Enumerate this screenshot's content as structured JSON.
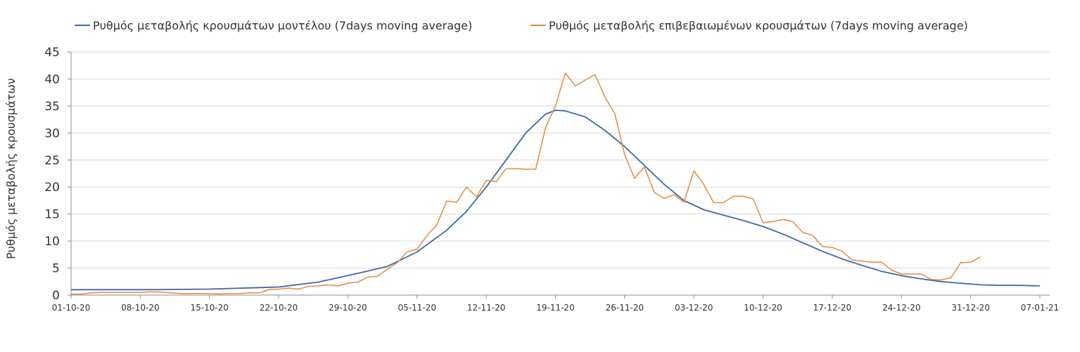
{
  "chart_data": {
    "type": "line",
    "ylabel": "Ρυθμός μεταβολής κρουσμάτων",
    "ylim": [
      0,
      45
    ],
    "yticks": [
      0,
      5,
      10,
      15,
      20,
      25,
      30,
      35,
      40,
      45
    ],
    "xlim": [
      "01-10-20",
      "08-01-21"
    ],
    "xticks": [
      "01-10-20",
      "08-10-20",
      "15-10-20",
      "22-10-20",
      "29-10-20",
      "05-11-20",
      "12-11-20",
      "19-11-20",
      "26-11-20",
      "03-12-20",
      "10-12-20",
      "17-12-20",
      "24-12-20",
      "31-12-20",
      "07-01-21"
    ],
    "grid": true,
    "legend": "top",
    "series": [
      {
        "name": "Ρυθμός μεταβολής κρουσμάτων μοντέλου (7days moving average)",
        "color": "#3b6aa8",
        "points": [
          [
            "01-10-20",
            1.0
          ],
          [
            "08-10-20",
            1.0
          ],
          [
            "15-10-20",
            1.1
          ],
          [
            "22-10-20",
            1.5
          ],
          [
            "26-10-20",
            2.4
          ],
          [
            "29-10-20",
            3.6
          ],
          [
            "02-11-20",
            5.3
          ],
          [
            "05-11-20",
            8.0
          ],
          [
            "08-11-20",
            12.0
          ],
          [
            "10-11-20",
            15.5
          ],
          [
            "12-11-20",
            20.0
          ],
          [
            "14-11-20",
            25.0
          ],
          [
            "16-11-20",
            30.0
          ],
          [
            "18-11-20",
            33.5
          ],
          [
            "19-11-20",
            34.2
          ],
          [
            "20-11-20",
            34.1
          ],
          [
            "22-11-20",
            33.0
          ],
          [
            "24-11-20",
            30.5
          ],
          [
            "26-11-20",
            27.5
          ],
          [
            "28-11-20",
            24.0
          ],
          [
            "30-11-20",
            20.5
          ],
          [
            "02-12-20",
            17.5
          ],
          [
            "04-12-20",
            15.8
          ],
          [
            "06-12-20",
            14.8
          ],
          [
            "08-12-20",
            13.8
          ],
          [
            "10-12-20",
            12.7
          ],
          [
            "12-12-20",
            11.3
          ],
          [
            "14-12-20",
            9.7
          ],
          [
            "16-12-20",
            8.1
          ],
          [
            "18-12-20",
            6.7
          ],
          [
            "20-12-20",
            5.5
          ],
          [
            "22-12-20",
            4.4
          ],
          [
            "24-12-20",
            3.6
          ],
          [
            "26-12-20",
            3.0
          ],
          [
            "28-12-20",
            2.5
          ],
          [
            "30-12-20",
            2.2
          ],
          [
            "01-01-21",
            1.9
          ],
          [
            "03-01-21",
            1.8
          ],
          [
            "05-01-21",
            1.8
          ],
          [
            "07-01-21",
            1.7
          ]
        ]
      },
      {
        "name": "Ρυθμός μεταβολής επιβεβαιωμένων κρουσμάτων (7days moving average)",
        "color": "#e8893a",
        "points": [
          [
            "01-10-20",
            0.2
          ],
          [
            "02-10-20",
            0.2
          ],
          [
            "03-10-20",
            0.4
          ],
          [
            "04-10-20",
            0.5
          ],
          [
            "05-10-20",
            0.5
          ],
          [
            "06-10-20",
            0.5
          ],
          [
            "07-10-20",
            0.5
          ],
          [
            "08-10-20",
            0.5
          ],
          [
            "09-10-20",
            0.6
          ],
          [
            "10-10-20",
            0.6
          ],
          [
            "11-10-20",
            0.4
          ],
          [
            "12-10-20",
            0.3
          ],
          [
            "13-10-20",
            0.3
          ],
          [
            "14-10-20",
            0.3
          ],
          [
            "15-10-20",
            0.3
          ],
          [
            "16-10-20",
            0.2
          ],
          [
            "17-10-20",
            0.3
          ],
          [
            "18-10-20",
            0.3
          ],
          [
            "19-10-20",
            0.4
          ],
          [
            "20-10-20",
            0.4
          ],
          [
            "21-10-20",
            1.0
          ],
          [
            "22-10-20",
            1.1
          ],
          [
            "23-10-20",
            1.3
          ],
          [
            "24-10-20",
            1.1
          ],
          [
            "25-10-20",
            1.6
          ],
          [
            "26-10-20",
            1.7
          ],
          [
            "27-10-20",
            1.9
          ],
          [
            "28-10-20",
            1.7
          ],
          [
            "29-10-20",
            2.2
          ],
          [
            "30-10-20",
            2.4
          ],
          [
            "31-10-20",
            3.3
          ],
          [
            "01-11-20",
            3.5
          ],
          [
            "02-11-20",
            4.8
          ],
          [
            "03-11-20",
            6.0
          ],
          [
            "04-11-20",
            8.0
          ],
          [
            "05-11-20",
            8.5
          ],
          [
            "06-11-20",
            11.0
          ],
          [
            "07-11-20",
            13.0
          ],
          [
            "08-11-20",
            17.4
          ],
          [
            "09-11-20",
            17.2
          ],
          [
            "10-11-20",
            20.0
          ],
          [
            "11-11-20",
            18.2
          ],
          [
            "12-11-20",
            21.2
          ],
          [
            "13-11-20",
            21.0
          ],
          [
            "14-11-20",
            23.4
          ],
          [
            "15-11-20",
            23.4
          ],
          [
            "16-11-20",
            23.3
          ],
          [
            "17-11-20",
            23.3
          ],
          [
            "18-11-20",
            31.0
          ],
          [
            "19-11-20",
            35.0
          ],
          [
            "20-11-20",
            41.1
          ],
          [
            "21-11-20",
            38.7
          ],
          [
            "22-11-20",
            39.8
          ],
          [
            "23-11-20",
            40.8
          ],
          [
            "24-11-20",
            36.7
          ],
          [
            "25-11-20",
            33.6
          ],
          [
            "26-11-20",
            26.0
          ],
          [
            "27-11-20",
            21.6
          ],
          [
            "28-11-20",
            23.7
          ],
          [
            "29-11-20",
            19.0
          ],
          [
            "30-11-20",
            17.9
          ],
          [
            "01-12-20",
            18.6
          ],
          [
            "02-12-20",
            17.2
          ],
          [
            "03-12-20",
            23.0
          ],
          [
            "04-12-20",
            20.5
          ],
          [
            "05-12-20",
            17.1
          ],
          [
            "06-12-20",
            17.1
          ],
          [
            "07-12-20",
            18.3
          ],
          [
            "08-12-20",
            18.3
          ],
          [
            "09-12-20",
            17.8
          ],
          [
            "10-12-20",
            13.4
          ],
          [
            "11-12-20",
            13.6
          ],
          [
            "12-12-20",
            14.0
          ],
          [
            "13-12-20",
            13.6
          ],
          [
            "14-12-20",
            11.6
          ],
          [
            "15-12-20",
            11.1
          ],
          [
            "16-12-20",
            9.0
          ],
          [
            "17-12-20",
            8.8
          ],
          [
            "18-12-20",
            8.1
          ],
          [
            "19-12-20",
            6.5
          ],
          [
            "20-12-20",
            6.3
          ],
          [
            "21-12-20",
            6.1
          ],
          [
            "22-12-20",
            6.1
          ],
          [
            "23-12-20",
            4.6
          ],
          [
            "24-12-20",
            3.9
          ],
          [
            "25-12-20",
            3.9
          ],
          [
            "26-12-20",
            3.9
          ],
          [
            "27-12-20",
            2.9
          ],
          [
            "28-12-20",
            2.8
          ],
          [
            "29-12-20",
            3.2
          ],
          [
            "30-12-20",
            6.0
          ],
          [
            "31-12-20",
            6.1
          ],
          [
            "01-01-21",
            7.1
          ]
        ]
      }
    ]
  }
}
